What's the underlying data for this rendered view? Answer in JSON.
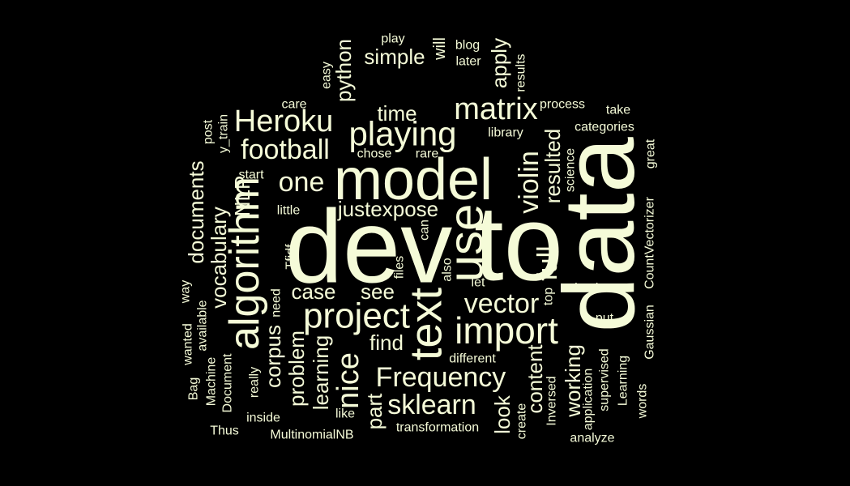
{
  "style": {
    "background": "#000000",
    "text_color": "#f5fbd8"
  },
  "words": [
    "dev",
    "to",
    "data",
    "model",
    "use",
    "text",
    "project",
    "import",
    "algorithm",
    "playing",
    "Heroku",
    "matrix",
    "football",
    "one",
    "violin",
    "justexpose",
    "Frequency",
    "sklearn",
    "vector",
    "nice",
    "case",
    "see",
    "find",
    "full",
    "resulted",
    "simple",
    "python",
    "apply",
    "time",
    "documents",
    "vocabulary",
    "NLP",
    "corpus",
    "problem",
    "learning",
    "part",
    "look",
    "content",
    "working",
    "Inversed",
    "create",
    "transformation",
    "MultinomialNB",
    "inside",
    "like",
    "Thus",
    "Document",
    "Machine",
    "Bag",
    "wanted",
    "available",
    "way",
    "Tfidf",
    "little",
    "start",
    "chose",
    "rare",
    "care",
    "easy",
    "play",
    "will",
    "blog",
    "later",
    "results",
    "process",
    "take",
    "library",
    "categories",
    "science",
    "great",
    "CountVectorizer",
    "Gaussian",
    "check",
    "put",
    "Learning",
    "supervised",
    "application",
    "analyze",
    "words",
    "different",
    "really",
    "need",
    "files",
    "can",
    "also",
    "let",
    "top",
    "post",
    "y_train"
  ]
}
